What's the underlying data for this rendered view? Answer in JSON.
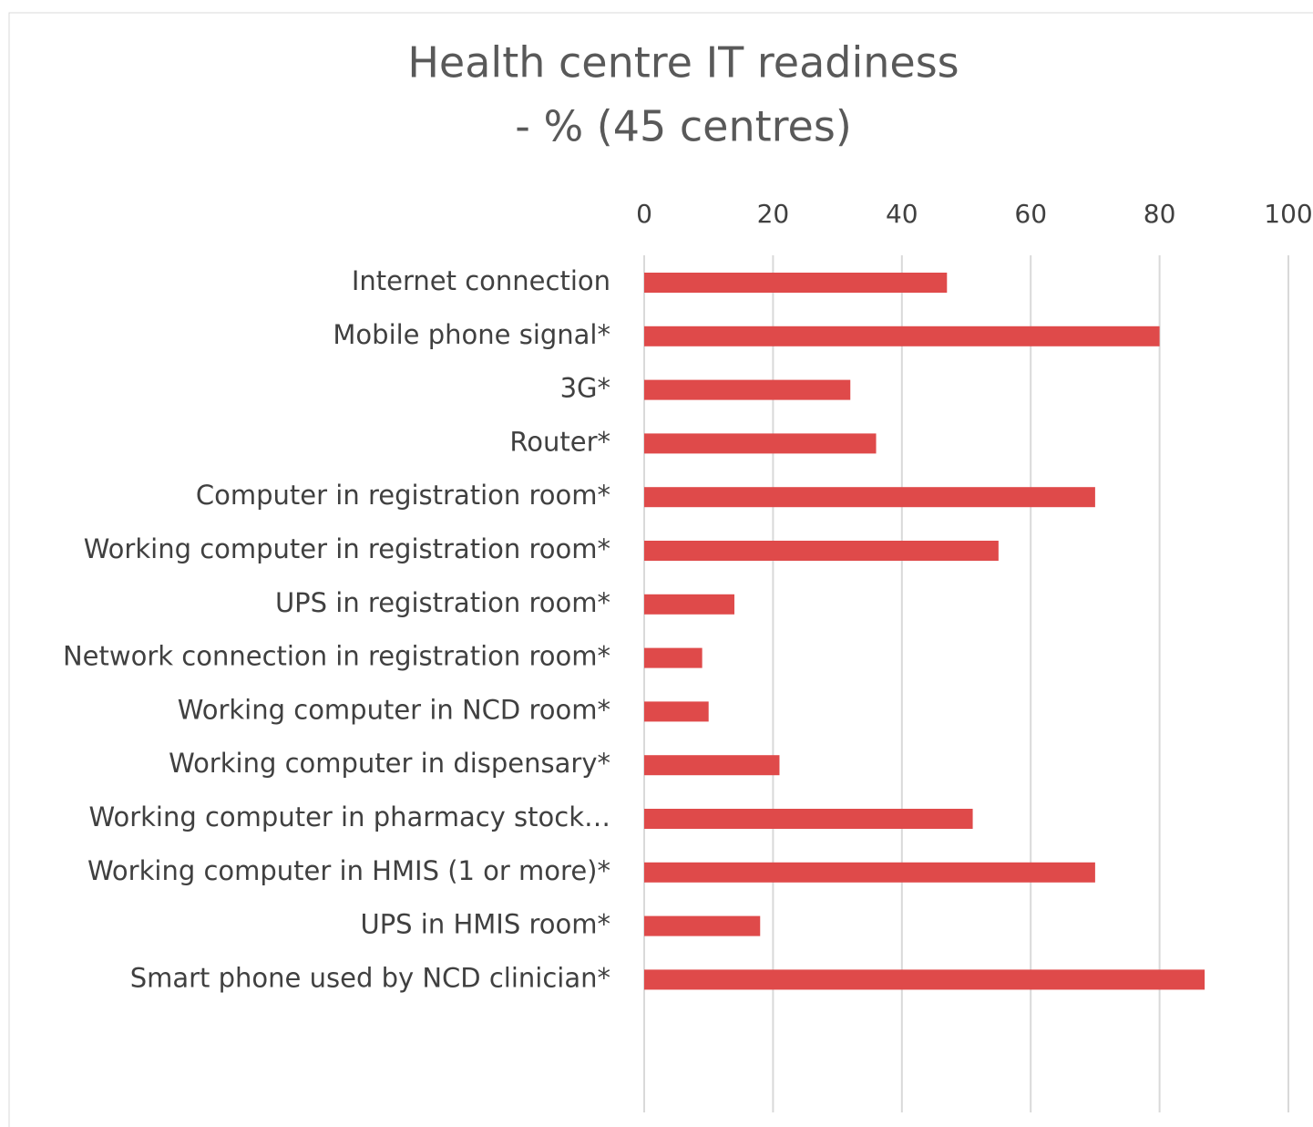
{
  "chart_data": {
    "type": "bar",
    "orientation": "horizontal",
    "title": [
      "Health centre IT readiness",
      "- % (45 centres)"
    ],
    "categories": [
      "Internet connection",
      "Mobile phone signal*",
      "3G*",
      "Router*",
      "Computer in registration room*",
      "Working computer in registration room*",
      "UPS in registration room*",
      "Network connection in registration room*",
      "Working computer in NCD room*",
      "Working computer in dispensary*",
      "Working computer in pharmacy stock…",
      "Working computer in HMIS (1 or more)*",
      "UPS in HMIS room*",
      "Smart phone used by NCD clinician*"
    ],
    "values": [
      47,
      80,
      32,
      36,
      70,
      55,
      14,
      9,
      10,
      21,
      51,
      70,
      18,
      87
    ],
    "color": "#df4a4a",
    "xlim": [
      0,
      100
    ],
    "xticks": [
      0,
      20,
      40,
      60,
      80,
      100
    ],
    "grid": true
  }
}
